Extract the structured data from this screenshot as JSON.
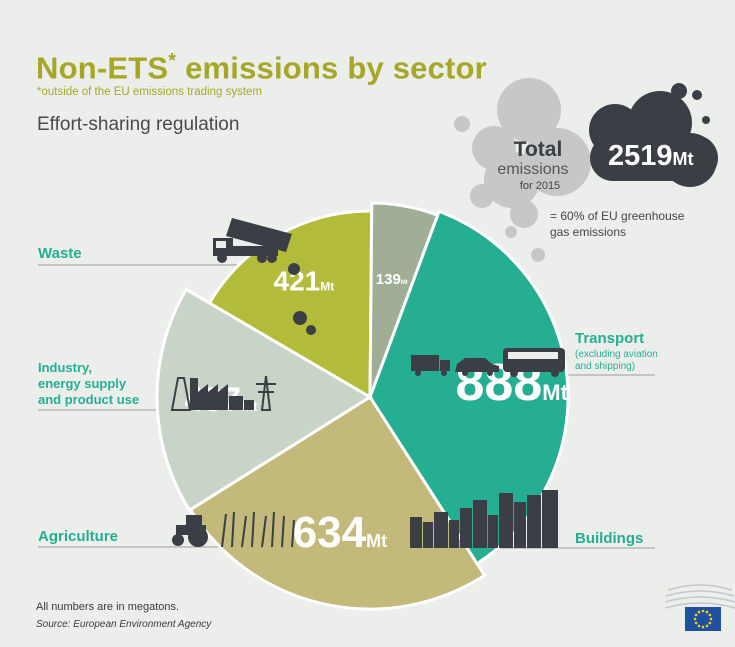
{
  "header": {
    "title": "Non-ETS",
    "title_mark": "*",
    "title_rest": " emissions by sector",
    "subtitle": "*outside of the EU emissions trading system",
    "heading": "Effort-sharing regulation"
  },
  "total": {
    "word": "Total",
    "emissions": "emissions",
    "year": "for 2015",
    "value": "2519",
    "unit": "Mt",
    "share_line1": "= 60% of EU greenhouse",
    "share_line2": "gas emissions"
  },
  "footer": {
    "note": "All numbers are in megatons.",
    "source": "Source: European Environment Agency"
  },
  "colors": {
    "transport": "#25ae91",
    "buildings": "#c3b97a",
    "agriculture": "#c9d4c9",
    "industry": "#b3bb3b",
    "waste": "#9fae94",
    "title": "#a6a627",
    "cloud_dark": "#3b3f45",
    "cloud_light": "#c6c8c8"
  },
  "chart_data": {
    "type": "pie",
    "unit": "Mt",
    "total": 2519,
    "slices": [
      {
        "label": "Transport",
        "sublabel": "(excluding aviation and shipping)",
        "value": 888
      },
      {
        "label": "Buildings",
        "sublabel": "",
        "value": 634
      },
      {
        "label": "Agriculture",
        "sublabel": "",
        "value": 437
      },
      {
        "label": "Industry, energy supply and product use",
        "sublabel": "",
        "value": 421
      },
      {
        "label": "Waste",
        "sublabel": "",
        "value": 139
      }
    ]
  }
}
